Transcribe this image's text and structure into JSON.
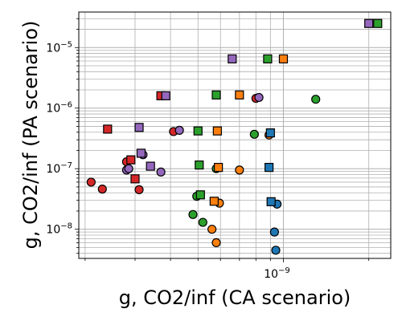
{
  "chart_data": {
    "type": "scatter",
    "title": "",
    "xlabel": "g, CO2/inf (CA scenario)",
    "ylabel": "g, CO2/inf (PA scenario)",
    "xscale": "log",
    "yscale": "log",
    "xlim": [
      1.9e-10,
      2.39e-09
    ],
    "ylim": [
      3.3e-09,
      3.86e-05
    ],
    "grid": true,
    "legend": "none",
    "x_tick_labels": [
      {
        "value": 1e-09,
        "mantissa": "10",
        "exponent": "−9"
      }
    ],
    "y_tick_labels": [
      {
        "value": 1e-05,
        "mantissa": "10",
        "exponent": "−5"
      },
      {
        "value": 1e-06,
        "mantissa": "10",
        "exponent": "−6"
      },
      {
        "value": 1e-07,
        "mantissa": "10",
        "exponent": "−7"
      },
      {
        "value": 1e-08,
        "mantissa": "10",
        "exponent": "−8"
      }
    ],
    "series": [
      {
        "color": "#d62728",
        "marker": "circle",
        "points": [
          [
            2.1e-10,
            6e-08
          ],
          [
            2.3e-10,
            4.6e-08
          ],
          [
            2.8e-10,
            1.3e-07
          ],
          [
            3.1e-10,
            4.5e-08
          ],
          [
            4.1e-10,
            4.1e-07
          ],
          [
            8e-10,
            1.45e-06
          ]
        ]
      },
      {
        "color": "#d62728",
        "marker": "square",
        "points": [
          [
            2.4e-10,
            4.5e-07
          ],
          [
            2.9e-10,
            1.4e-07
          ],
          [
            3e-10,
            6.8e-08
          ],
          [
            3.7e-10,
            1.6e-06
          ]
        ]
      },
      {
        "color": "#9467bd",
        "marker": "circle",
        "points": [
          [
            2.8e-10,
            9.5e-08
          ],
          [
            2.85e-10,
            1e-07
          ],
          [
            3.2e-10,
            1.7e-07
          ],
          [
            3.7e-10,
            8.8e-08
          ],
          [
            4.3e-10,
            4.3e-07
          ],
          [
            8.2e-10,
            1.5e-06
          ]
        ]
      },
      {
        "color": "#9467bd",
        "marker": "square",
        "points": [
          [
            3.1e-10,
            4.8e-07
          ],
          [
            3.15e-10,
            1.8e-07
          ],
          [
            3.4e-10,
            1.1e-07
          ],
          [
            3.85e-10,
            1.6e-06
          ],
          [
            6.6e-10,
            6.5e-06
          ],
          [
            2e-09,
            2.5e-05
          ]
        ]
      },
      {
        "color": "#2ca02c",
        "marker": "circle",
        "points": [
          [
            4.8e-10,
            1.75e-08
          ],
          [
            4.95e-10,
            3.5e-08
          ],
          [
            5.2e-10,
            1.3e-08
          ],
          [
            5.8e-10,
            1e-07
          ],
          [
            7.9e-10,
            3.7e-07
          ],
          [
            1.3e-09,
            1.4e-06
          ]
        ]
      },
      {
        "color": "#2ca02c",
        "marker": "square",
        "points": [
          [
            5e-10,
            4.2e-07
          ],
          [
            5.05e-10,
            1.15e-07
          ],
          [
            5.1e-10,
            3.7e-08
          ],
          [
            5.8e-10,
            1.65e-06
          ],
          [
            8.8e-10,
            6.5e-06
          ],
          [
            2.15e-09,
            2.5e-05
          ]
        ]
      },
      {
        "color": "#ff7f0e",
        "marker": "circle",
        "points": [
          [
            5.6e-10,
            1e-08
          ],
          [
            5.8e-10,
            6e-09
          ],
          [
            5.95e-10,
            2.7e-08
          ],
          [
            7e-10,
            9.5e-08
          ],
          [
            8.9e-10,
            3.6e-07
          ]
        ]
      },
      {
        "color": "#ff7f0e",
        "marker": "square",
        "points": [
          [
            5.7e-10,
            2.9e-08
          ],
          [
            5.85e-10,
            4.2e-07
          ],
          [
            5.9e-10,
            1.05e-07
          ],
          [
            7e-10,
            1.65e-06
          ],
          [
            1e-09,
            6.5e-06
          ]
        ]
      },
      {
        "color": "#1f77b4",
        "marker": "circle",
        "points": [
          [
            9.3e-10,
            9e-09
          ],
          [
            9.4e-10,
            4.5e-09
          ],
          [
            9.5e-10,
            2.6e-08
          ]
        ]
      },
      {
        "color": "#1f77b4",
        "marker": "square",
        "points": [
          [
            8.9e-10,
            1.05e-07
          ],
          [
            9e-10,
            3.9e-07
          ],
          [
            9.05e-10,
            2.85e-08
          ]
        ]
      }
    ]
  }
}
